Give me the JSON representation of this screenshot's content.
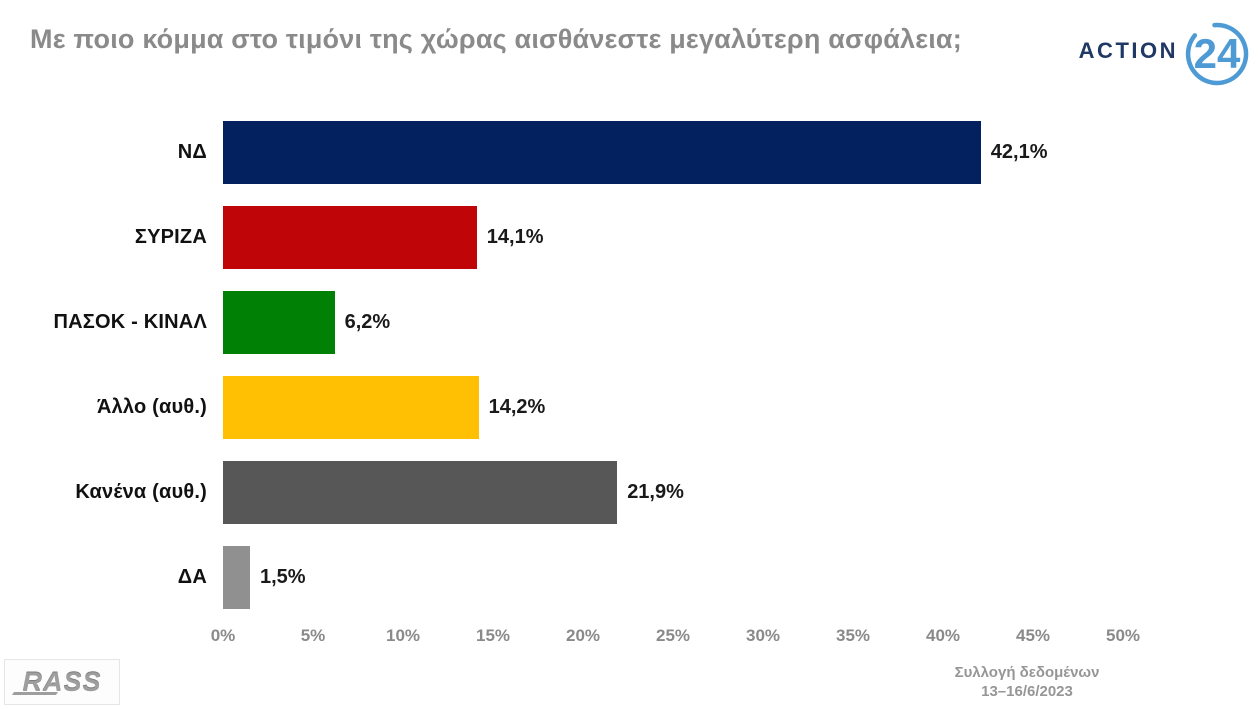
{
  "title": "Με ποιο κόμμα στο τιμόνι της χώρας αισθάνεστε μεγαλύτερη ασφάλεια;",
  "logo": {
    "brand": "ACTION",
    "number": "24",
    "brand_color": "#1F3864",
    "accent_color": "#4D9AD5"
  },
  "chart_data": {
    "type": "bar",
    "orientation": "horizontal",
    "title": "Με ποιο κόμμα στο τιμόνι της χώρας αισθάνεστε μεγαλύτερη ασφάλεια;",
    "categories": [
      "ΝΔ",
      "ΣΥΡΙΖΑ",
      "ΠΑΣΟΚ - ΚΙΝΑΛ",
      "Άλλο (αυθ.)",
      "Κανένα (αυθ.)",
      "ΔΑ"
    ],
    "values": [
      42.1,
      14.1,
      6.2,
      14.2,
      21.9,
      1.5
    ],
    "value_labels": [
      "42,1%",
      "14,1%",
      "6,2%",
      "14,2%",
      "21,9%",
      "1,5%"
    ],
    "bar_colors": [
      "#02215E",
      "#C00508",
      "#008005",
      "#FFC003",
      "#575757",
      "#909090"
    ],
    "x_ticks": [
      "0%",
      "5%",
      "10%",
      "15%",
      "20%",
      "25%",
      "30%",
      "35%",
      "40%",
      "45%",
      "50%"
    ],
    "xlim": [
      0,
      50
    ],
    "grid": false,
    "legend": false
  },
  "footer": {
    "source_logo": "RASS",
    "note_line1": "Συλλογή δεδομένων",
    "note_line2": "13–16/6/2023"
  }
}
